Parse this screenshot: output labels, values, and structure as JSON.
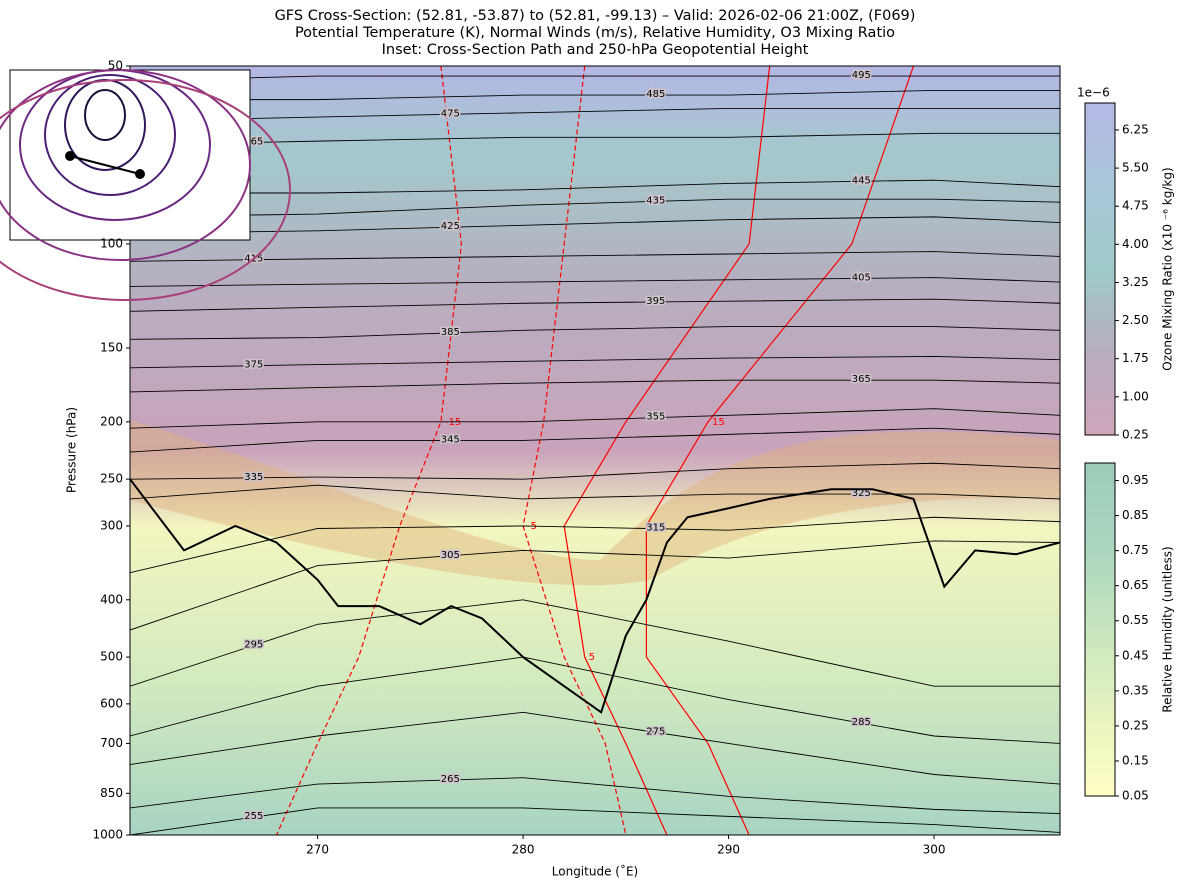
{
  "chart_data": {
    "type": "cross-section",
    "title": "GFS Cross-Section: (52.81, -53.87) to (52.81, -99.13) – Valid: 2026-02-06 21:00Z, (F069)",
    "subtitle": "Potential Temperature (K), Normal Winds (m/s), Relative Humidity, O3 Mixing Ratio",
    "inset_title": "Inset: Cross-Section Path and 250-hPa Geopotential Height",
    "xlabel": "Longitude (˚E)",
    "ylabel": "Pressure (hPa)",
    "xlim": [
      260.87,
      306.13
    ],
    "ylim": [
      1000,
      50
    ],
    "ylog": true,
    "xticks": [
      270,
      280,
      290,
      300
    ],
    "yticks": [
      50,
      100,
      150,
      200,
      250,
      300,
      400,
      500,
      600,
      700,
      850,
      1000
    ],
    "x": [
      260.87,
      270,
      280,
      290,
      300,
      306.13
    ],
    "isentropes": [
      {
        "level": 255,
        "color": "#000000",
        "values": [
          1000,
          900,
          900,
          930,
          960,
          990
        ]
      },
      {
        "level": 265,
        "color": "#000000",
        "values": [
          900,
          820,
          800,
          860,
          905,
          920
        ]
      },
      {
        "level": 275,
        "color": "#000000",
        "values": [
          760,
          680,
          620,
          700,
          790,
          820
        ]
      },
      {
        "level": 285,
        "color": "#000000",
        "values": [
          680,
          560,
          500,
          590,
          680,
          700
        ]
      },
      {
        "level": 295,
        "color": "#000000",
        "values": [
          560,
          440,
          400,
          470,
          560,
          560
        ]
      },
      {
        "level": 305,
        "color": "#000000",
        "values": [
          450,
          350,
          330,
          340,
          318,
          320
        ]
      },
      {
        "level": 315,
        "color": "#000000",
        "values": [
          360,
          303,
          300,
          305,
          290,
          295
        ]
      },
      {
        "level": 325,
        "color": "#000000",
        "values": [
          270,
          256,
          270,
          265,
          265,
          270
        ]
      },
      {
        "level": 335,
        "color": "#000000",
        "values": [
          250,
          248,
          250,
          240,
          235,
          240
        ]
      },
      {
        "level": 345,
        "color": "#000000",
        "values": [
          225,
          215,
          215,
          210,
          205,
          210
        ]
      },
      {
        "level": 355,
        "color": "#000000",
        "values": [
          205,
          200,
          200,
          195,
          190,
          195
        ]
      },
      {
        "level": 365,
        "color": "#000000",
        "values": [
          178,
          175,
          172,
          170,
          170,
          172
        ]
      },
      {
        "level": 375,
        "color": "#000000",
        "values": [
          162,
          160,
          158,
          156,
          155,
          157
        ]
      },
      {
        "level": 385,
        "color": "#000000",
        "values": [
          145,
          144,
          140,
          138,
          138,
          140
        ]
      },
      {
        "level": 395,
        "color": "#000000",
        "values": [
          130,
          128,
          126,
          125,
          124,
          126
        ]
      },
      {
        "level": 405,
        "color": "#000000",
        "values": [
          118,
          117,
          116,
          115,
          114,
          116
        ]
      },
      {
        "level": 415,
        "color": "#000000",
        "values": [
          107,
          106,
          105,
          104,
          103,
          105
        ]
      },
      {
        "level": 425,
        "color": "#000000",
        "values": [
          96,
          95,
          93,
          91,
          90,
          92
        ]
      },
      {
        "level": 435,
        "color": "#000000",
        "values": [
          90,
          89,
          86,
          84,
          84,
          85
        ]
      },
      {
        "level": 445,
        "color": "#000000",
        "values": [
          82,
          82,
          81,
          79,
          78,
          80
        ]
      },
      {
        "level": 465,
        "color": "#000000",
        "values": [
          68,
          67,
          66,
          66,
          65,
          65
        ]
      },
      {
        "level": 475,
        "color": "#000000",
        "values": [
          62,
          61,
          60,
          59,
          59,
          59
        ]
      },
      {
        "level": 485,
        "color": "#000000",
        "values": [
          57,
          57,
          56,
          56,
          55,
          55
        ]
      },
      {
        "level": 495,
        "color": "#000000",
        "values": [
          53,
          52,
          52,
          52,
          52,
          52
        ]
      }
    ],
    "tropopause": {
      "color": "#000000",
      "x": [
        260.87,
        263.5,
        266,
        268,
        270,
        271,
        273,
        275,
        276.5,
        278,
        280,
        282,
        283.8,
        285,
        286,
        287,
        288,
        290,
        292,
        295,
        297,
        299,
        300.5,
        302,
        304,
        306.13
      ],
      "values": [
        250,
        330,
        300,
        320,
        370,
        410,
        410,
        440,
        410,
        430,
        500,
        560,
        620,
        460,
        400,
        320,
        290,
        280,
        270,
        260,
        260,
        270,
        380,
        330,
        335,
        320
      ]
    },
    "wind": {
      "p": [
        50,
        100,
        200,
        300,
        500,
        700,
        1000
      ],
      "contours": [
        {
          "level": -15,
          "color": "#ff0000",
          "dashed": true,
          "values": [
            276,
            277,
            276,
            274,
            272,
            270,
            268
          ]
        },
        {
          "level": -5,
          "color": "#ff0000",
          "dashed": true,
          "values": [
            283,
            282,
            281,
            280,
            282,
            284,
            285
          ]
        },
        {
          "level": 5,
          "color": "#ff0000",
          "dashed": false,
          "values": [
            292,
            291,
            285,
            282,
            283,
            285,
            287
          ]
        },
        {
          "level": 15,
          "color": "#ff0000",
          "dashed": false,
          "values": [
            299,
            296,
            289,
            286,
            286,
            289,
            291
          ]
        }
      ]
    },
    "colorbars": [
      {
        "label": "Ozone Mixing Ratio (x10 ⁻⁶ kg/kg)",
        "offset_text": "1e−6",
        "ylim": [
          0.25,
          6.78
        ],
        "colors": [
          "#cfa6bb",
          "#b8aec0",
          "#9fcbca",
          "#a8c6d8",
          "#b6b8e6"
        ],
        "ticks": [
          0.25,
          {
            "value": 1,
            "label": "1.00"
          },
          1.75,
          {
            "value": 2.5,
            "label": "2.50"
          },
          3.25,
          {
            "value": 4,
            "label": "4.00"
          },
          4.75,
          {
            "value": 5.5,
            "label": "5.50"
          },
          6.25
        ]
      },
      {
        "label": "Relative Humidity (unitless)",
        "ylim": [
          0.05,
          1.0
        ],
        "colors": [
          "#ffffc4",
          "#e6f3bf",
          "#c7e5be",
          "#aad6bf",
          "#9ccdb9"
        ],
        "ticks": [
          0.05,
          0.15,
          0.25,
          0.35,
          0.45,
          0.55,
          0.65,
          0.75,
          0.85,
          0.95
        ]
      }
    ]
  }
}
